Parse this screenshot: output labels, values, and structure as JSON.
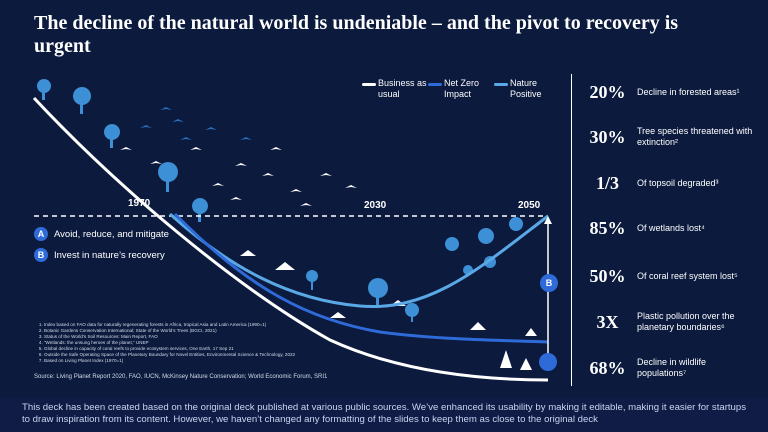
{
  "title": "The decline of the natural world is undeniable – and the pivot to recovery is urgent",
  "legend": [
    {
      "label": "Business as usual",
      "color": "#ffffff"
    },
    {
      "label": "Net Zero Impact",
      "color": "#2f6bd8"
    },
    {
      "label": "Nature Positive",
      "color": "#5aa9e6"
    }
  ],
  "years": {
    "y1970": "1970",
    "y2030": "2030",
    "y2050": "2050"
  },
  "markers": {
    "a_letter": "A",
    "a_label": "Avoid, reduce, and mitigate",
    "b_letter": "B",
    "b_label": "Invest in nature’s recovery",
    "b_chart_letter": "B"
  },
  "stats": [
    {
      "value": "20%",
      "text": "Decline in forested areas¹"
    },
    {
      "value": "30%",
      "text": "Tree species threatened with extinction²"
    },
    {
      "value": "1/3",
      "text": "Of topsoil degraded³"
    },
    {
      "value": "85%",
      "text": "Of wetlands lost⁴"
    },
    {
      "value": "50%",
      "text": "Of coral reef system lost⁵"
    },
    {
      "value": "3X",
      "text": "Plastic pollution over the planetary boundaries⁶"
    },
    {
      "value": "68%",
      "text": "Decline in wildlife populations⁷"
    }
  ],
  "footnotes": [
    "Index based on FAO data for naturally regenerating forests in Africa, tropical Asia and Latin America (1990=1)",
    "Botanic Gardens Conservation International; State of the World’s Trees (BGCI, 2021)",
    "Status of the World’s Soil Resources: Main Report, FAO",
    "“Wetlands: the unsung heroes of the planet,” UNEP",
    "Global decline in capacity of coral reefs to provide ecosystem services, One Earth, 17 Sep 21",
    "Outside the Safe Operating Space of the Planetary Boundary for Novel Entities, Environmental Science & Technology, 2022",
    "Based on Living Planet Index (1970=1)"
  ],
  "source": "Source: Living Planet Report 2020, FAO, IUCN, McKinsey Nature Conservation; World Economic Forum, SRI1",
  "banner": "This deck has been created based on the original deck published at various public sources. We’ve enhanced its usability by making it editable, making it easier for startups to draw inspiration from its content. However, we haven’t changed any formatting of the slides to keep them as close to the original deck"
}
